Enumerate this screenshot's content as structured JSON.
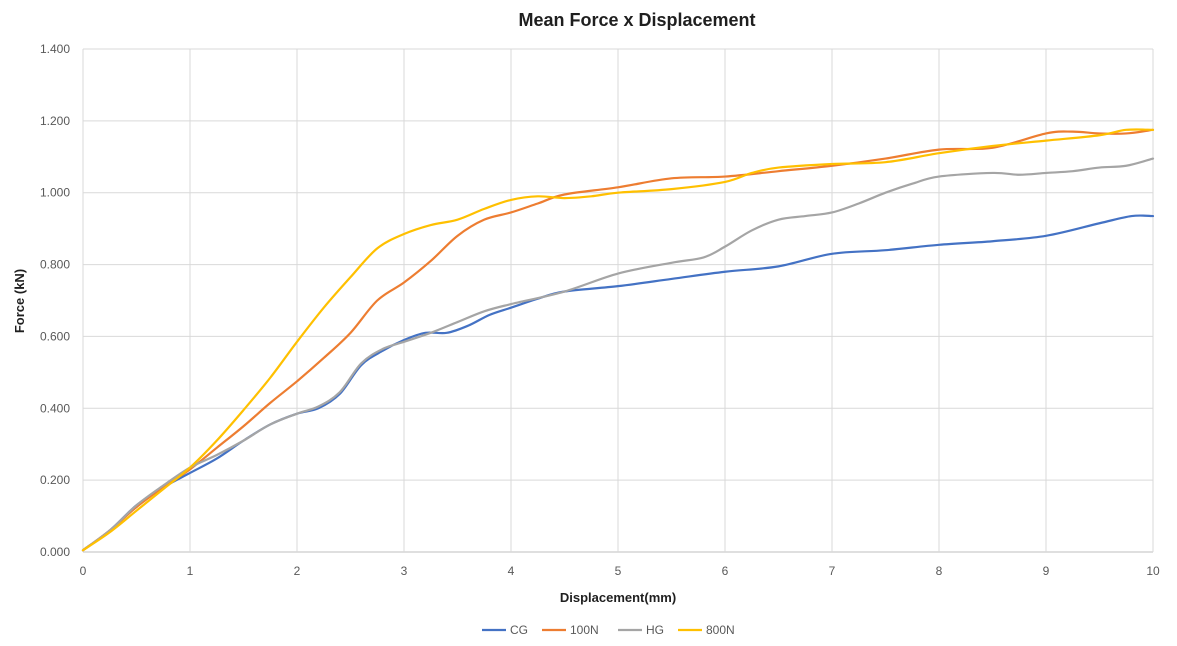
{
  "chart_data": {
    "type": "line",
    "title": "Mean Force x Displacement",
    "xlabel": "Displacement(mm)",
    "ylabel": "Force (kN)",
    "xlim": [
      0,
      10
    ],
    "ylim": [
      0,
      1.4
    ],
    "x_ticks": [
      0,
      1,
      2,
      3,
      4,
      5,
      6,
      7,
      8,
      9,
      10
    ],
    "x_tick_labels": [
      "0",
      "1",
      "2",
      "3",
      "4",
      "5",
      "6",
      "7",
      "8",
      "9",
      "10"
    ],
    "y_ticks": [
      0,
      0.2,
      0.4,
      0.6,
      0.8,
      1.0,
      1.2,
      1.4
    ],
    "y_tick_labels": [
      "0.000",
      "0.200",
      "0.400",
      "0.600",
      "0.800",
      "1.000",
      "1.200",
      "1.400"
    ],
    "grid": true,
    "legend_position": "bottom",
    "series": [
      {
        "name": "CG",
        "color": "#4472C4",
        "x": [
          0,
          0.25,
          0.5,
          0.75,
          1.0,
          1.25,
          1.5,
          1.75,
          2.0,
          2.2,
          2.4,
          2.6,
          2.8,
          3.0,
          3.2,
          3.4,
          3.6,
          3.8,
          4.0,
          4.25,
          4.5,
          5.0,
          5.5,
          6.0,
          6.5,
          7.0,
          7.5,
          8.0,
          8.5,
          9.0,
          9.5,
          9.8,
          10.0
        ],
        "y": [
          0.005,
          0.06,
          0.13,
          0.18,
          0.22,
          0.26,
          0.31,
          0.355,
          0.385,
          0.4,
          0.44,
          0.52,
          0.56,
          0.59,
          0.61,
          0.61,
          0.63,
          0.66,
          0.68,
          0.705,
          0.725,
          0.74,
          0.76,
          0.78,
          0.795,
          0.83,
          0.84,
          0.855,
          0.865,
          0.88,
          0.915,
          0.935,
          0.935
        ]
      },
      {
        "name": "100N",
        "color": "#ED7D31",
        "x": [
          0,
          0.25,
          0.5,
          0.75,
          1.0,
          1.25,
          1.5,
          1.75,
          2.0,
          2.25,
          2.5,
          2.75,
          3.0,
          3.25,
          3.5,
          3.75,
          4.0,
          4.25,
          4.5,
          5.0,
          5.5,
          6.0,
          6.5,
          7.0,
          7.5,
          8.0,
          8.5,
          9.0,
          9.25,
          9.5,
          9.75,
          10.0
        ],
        "y": [
          0.005,
          0.06,
          0.125,
          0.18,
          0.23,
          0.29,
          0.35,
          0.415,
          0.475,
          0.54,
          0.61,
          0.7,
          0.75,
          0.81,
          0.88,
          0.925,
          0.945,
          0.97,
          0.995,
          1.015,
          1.04,
          1.045,
          1.06,
          1.075,
          1.095,
          1.12,
          1.125,
          1.165,
          1.17,
          1.165,
          1.165,
          1.175
        ]
      },
      {
        "name": "HG",
        "color": "#A5A5A5",
        "x": [
          0,
          0.25,
          0.5,
          0.75,
          1.0,
          1.25,
          1.5,
          1.75,
          2.0,
          2.2,
          2.4,
          2.6,
          2.8,
          3.0,
          3.25,
          3.5,
          3.75,
          4.0,
          4.5,
          5.0,
          5.5,
          5.8,
          6.0,
          6.25,
          6.5,
          6.75,
          7.0,
          7.25,
          7.5,
          7.75,
          8.0,
          8.5,
          8.75,
          9.0,
          9.25,
          9.5,
          9.75,
          10.0
        ],
        "y": [
          0.005,
          0.06,
          0.13,
          0.185,
          0.235,
          0.27,
          0.31,
          0.355,
          0.385,
          0.405,
          0.445,
          0.525,
          0.565,
          0.585,
          0.61,
          0.64,
          0.67,
          0.69,
          0.725,
          0.775,
          0.805,
          0.82,
          0.85,
          0.895,
          0.925,
          0.935,
          0.945,
          0.97,
          1.0,
          1.025,
          1.045,
          1.055,
          1.05,
          1.055,
          1.06,
          1.07,
          1.075,
          1.095
        ]
      },
      {
        "name": "800N",
        "color": "#FFC000",
        "x": [
          0,
          0.25,
          0.5,
          0.75,
          1.0,
          1.25,
          1.5,
          1.75,
          2.0,
          2.25,
          2.5,
          2.75,
          3.0,
          3.25,
          3.5,
          3.75,
          4.0,
          4.25,
          4.5,
          4.75,
          5.0,
          5.5,
          6.0,
          6.25,
          6.5,
          7.0,
          7.5,
          8.0,
          8.5,
          9.0,
          9.5,
          9.75,
          10.0
        ],
        "y": [
          0.005,
          0.055,
          0.115,
          0.175,
          0.235,
          0.31,
          0.395,
          0.485,
          0.585,
          0.68,
          0.765,
          0.845,
          0.885,
          0.91,
          0.925,
          0.955,
          0.98,
          0.99,
          0.985,
          0.99,
          1.0,
          1.01,
          1.03,
          1.055,
          1.07,
          1.08,
          1.085,
          1.11,
          1.13,
          1.145,
          1.16,
          1.175,
          1.175
        ]
      }
    ]
  }
}
